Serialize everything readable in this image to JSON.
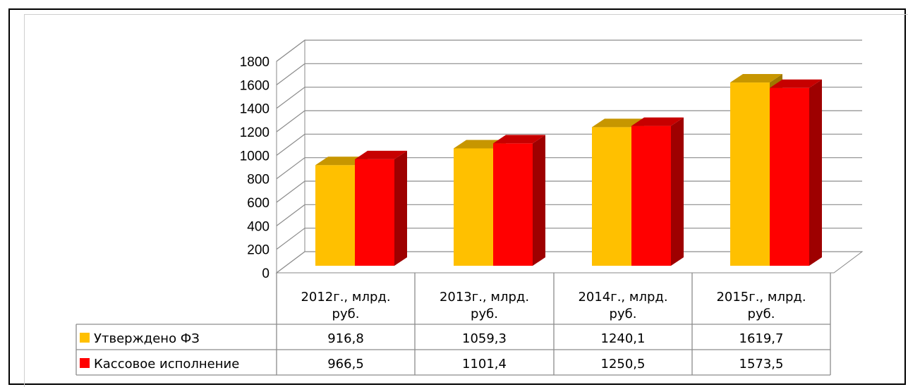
{
  "chart_data": {
    "type": "bar",
    "title": "",
    "xlabel": "",
    "ylabel": "",
    "ylim": [
      0,
      1800
    ],
    "yticks": [
      0,
      200,
      400,
      600,
      800,
      1000,
      1200,
      1400,
      1600,
      1800
    ],
    "categories": [
      "2012г., млрд. руб.",
      "2013г., млрд. руб.",
      "2014г., млрд. руб.",
      "2015г., млрд. руб."
    ],
    "series": [
      {
        "name": "Утверждено ФЗ",
        "color": "#FFC000",
        "values": [
          916.8,
          1059.3,
          1240.1,
          1619.7
        ],
        "labels": [
          "916,8",
          "1059,3",
          "1240,1",
          "1619,7"
        ]
      },
      {
        "name": "Кассовое исполнение",
        "color": "#FF0000",
        "values": [
          966.5,
          1101.4,
          1250.5,
          1573.5
        ],
        "labels": [
          "966,5",
          "1101,4",
          "1250,5",
          "1573,5"
        ]
      }
    ],
    "grid": true,
    "legend": "data-table",
    "style": "3d-clustered-column"
  }
}
